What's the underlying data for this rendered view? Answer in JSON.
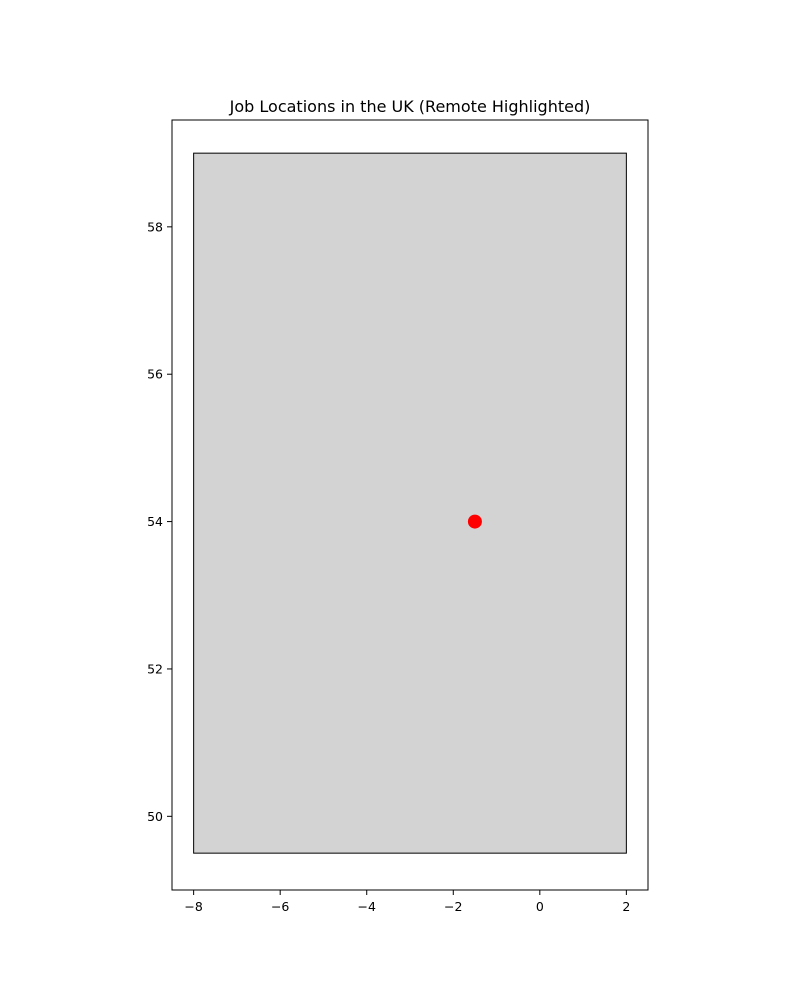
{
  "chart_data": {
    "type": "scatter",
    "title": "Job Locations in the UK (Remote Highlighted)",
    "xlabel": "",
    "ylabel": "",
    "xlim": [
      -8.5,
      2.5
    ],
    "ylim": [
      49.0,
      59.45
    ],
    "xticks": [
      -8,
      -6,
      -4,
      -2,
      0,
      2
    ],
    "yticks": [
      50,
      52,
      54,
      56,
      58
    ],
    "xtick_labels": [
      "−8",
      "−6",
      "−4",
      "−2",
      "0",
      "2"
    ],
    "ytick_labels": [
      "50",
      "52",
      "54",
      "56",
      "58"
    ],
    "grid": false,
    "legend": "none",
    "region": {
      "x": [
        -8,
        2
      ],
      "y": [
        49.5,
        59.0
      ],
      "fill": "#d3d3d3",
      "edge": "#000000"
    },
    "points": [
      {
        "x": -1.5,
        "y": 54.0,
        "color": "#ff0000"
      }
    ]
  }
}
